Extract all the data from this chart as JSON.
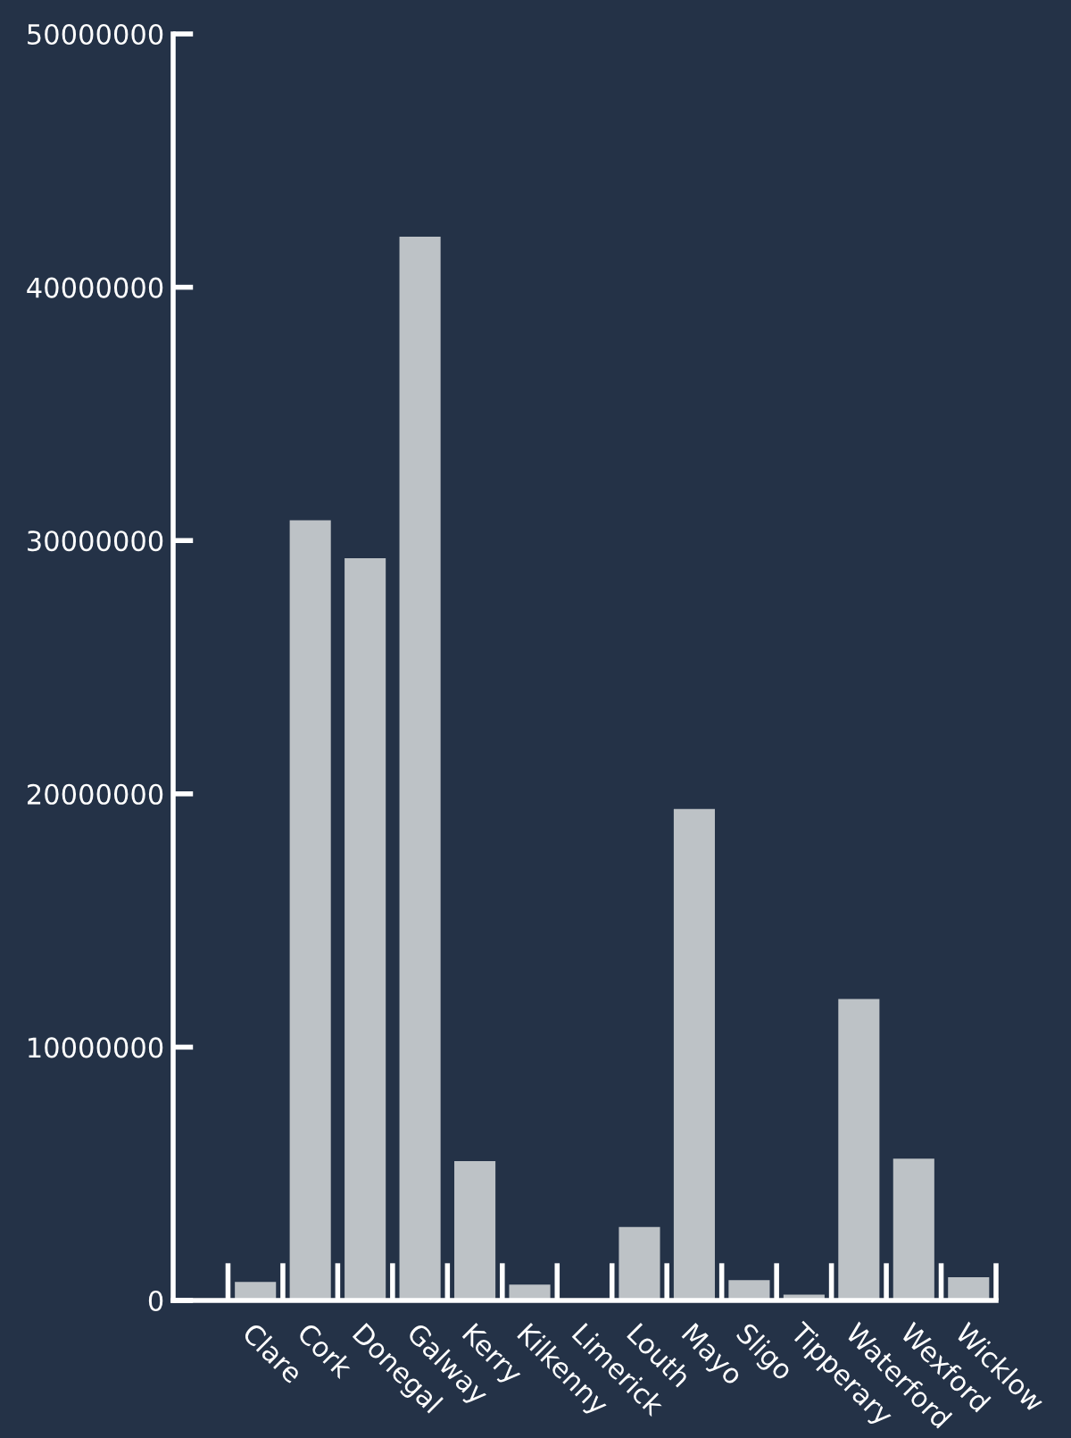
{
  "chart_data": {
    "type": "bar",
    "categories": [
      "Clare",
      "Cork",
      "Donegal",
      "Galway",
      "Kerry",
      "Kilkenny",
      "Limerick",
      "Louth",
      "Mayo",
      "Sligo",
      "Tipperary",
      "Waterford",
      "Wexford",
      "Wicklow"
    ],
    "values": [
      730000,
      30800000,
      29300000,
      42000000,
      5500000,
      630000,
      0,
      2900000,
      19400000,
      800000,
      230000,
      11900000,
      5600000,
      920000
    ],
    "color": "#bdc2c6",
    "ylim": [
      0,
      50000000
    ],
    "yticks": [
      0,
      10000000,
      20000000,
      30000000,
      40000000,
      50000000
    ],
    "grid": false,
    "legend": false
  }
}
